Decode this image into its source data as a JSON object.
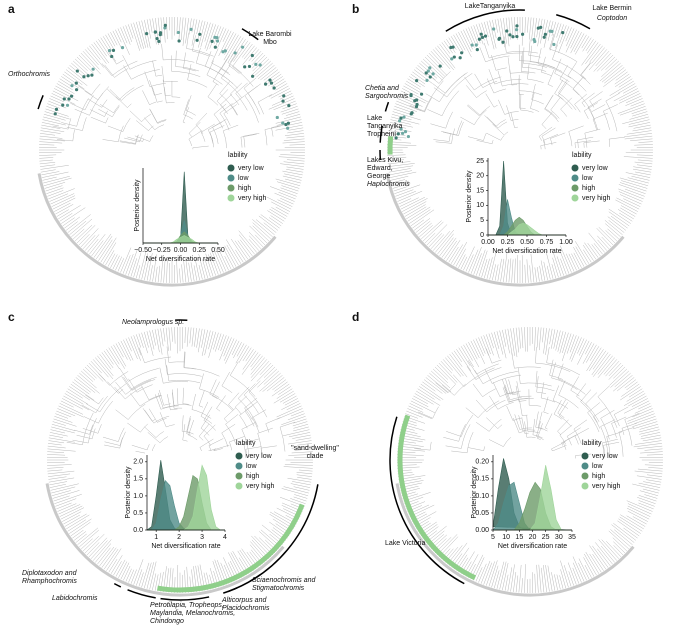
{
  "chart_data": [
    {
      "type": "density",
      "panel_label": "a",
      "xlabel": "Net diversification rate",
      "ylabel": "Posterior density",
      "legend_title": "lability",
      "x": [
        -0.5,
        -0.45,
        -0.4,
        -0.35,
        -0.3,
        -0.25,
        -0.2,
        -0.15,
        -0.1,
        -0.05,
        0,
        0.05,
        0.1,
        0.15,
        0.2,
        0.25,
        0.3,
        0.35,
        0.4,
        0.45,
        0.5
      ],
      "xlim": [
        -0.5,
        0.5
      ],
      "ylim": [
        0,
        40
      ],
      "xticks": [
        {
          "value": -0.5,
          "label": "−0.50"
        },
        {
          "value": -0.25,
          "label": "−0.25"
        },
        {
          "value": 0,
          "label": "0.00"
        },
        {
          "value": 0.25,
          "label": "0.25"
        },
        {
          "value": 0.5,
          "label": "0.50"
        }
      ],
      "yticks": [],
      "series": [
        {
          "name": "very low",
          "color": "#2f5d50",
          "values": [
            0,
            0,
            0,
            0,
            0,
            0,
            0,
            0,
            0,
            0,
            2,
            38,
            3,
            0,
            0,
            0,
            0,
            0,
            0,
            0,
            0
          ]
        },
        {
          "name": "low",
          "color": "#4f8c88",
          "values": [
            0,
            0,
            0,
            0,
            0,
            0,
            0,
            0,
            0,
            0,
            4,
            12,
            4,
            0,
            0,
            0,
            0,
            0,
            0,
            0,
            0
          ]
        },
        {
          "name": "high",
          "color": "#6d9b69",
          "values": [
            0,
            0,
            0,
            0,
            0,
            0,
            0,
            0,
            0,
            1,
            4,
            6,
            4,
            1,
            0,
            0,
            0,
            0,
            0,
            0,
            0
          ]
        },
        {
          "name": "very high",
          "color": "#9fd59a",
          "values": [
            0,
            0,
            0,
            0,
            0,
            0,
            0,
            0,
            0.5,
            2,
            3,
            4,
            3,
            2,
            0.5,
            0,
            0,
            0,
            0,
            0,
            0
          ]
        }
      ],
      "annotations": [
        {
          "lines": [
            "Lake Barombi",
            "Mbo"
          ],
          "italic": false
        },
        {
          "lines": [
            "Orthochromis"
          ],
          "italic": true
        }
      ]
    },
    {
      "type": "density",
      "panel_label": "b",
      "xlabel": "Net diversification rate",
      "ylabel": "Posterior density",
      "legend_title": "lability",
      "x": [
        0,
        0.05,
        0.1,
        0.15,
        0.2,
        0.25,
        0.3,
        0.35,
        0.4,
        0.45,
        0.5,
        0.55,
        0.6,
        0.65,
        0.7,
        0.75,
        0.8,
        0.85,
        0.9,
        0.95,
        1
      ],
      "xlim": [
        0,
        1
      ],
      "ylim": [
        0,
        26
      ],
      "xticks": [
        {
          "value": 0,
          "label": "0.00"
        },
        {
          "value": 0.25,
          "label": "0.25"
        },
        {
          "value": 0.5,
          "label": "0.50"
        },
        {
          "value": 0.75,
          "label": "0.75"
        },
        {
          "value": 1,
          "label": "1.00"
        }
      ],
      "yticks": [
        0,
        5,
        10,
        15,
        20,
        25
      ],
      "series": [
        {
          "name": "very low",
          "color": "#2f5d50",
          "values": [
            0,
            0,
            0,
            3,
            25,
            4,
            0,
            0,
            0,
            0,
            0,
            0,
            0,
            0,
            0,
            0,
            0,
            0,
            0,
            0,
            0
          ]
        },
        {
          "name": "low",
          "color": "#4f8c88",
          "values": [
            0,
            0,
            0,
            0,
            3,
            12,
            6,
            1,
            0,
            0,
            0,
            0,
            0,
            0,
            0,
            0,
            0,
            0,
            0,
            0,
            0
          ]
        },
        {
          "name": "high",
          "color": "#6d9b69",
          "values": [
            0,
            0,
            0,
            0,
            0,
            1,
            3,
            5,
            6,
            5,
            3,
            1,
            0,
            0,
            0,
            0,
            0,
            0,
            0,
            0,
            0
          ]
        },
        {
          "name": "very high",
          "color": "#9fd59a",
          "values": [
            0,
            0,
            0,
            0,
            0,
            0,
            1,
            2,
            3.5,
            4,
            3.5,
            2.5,
            1.5,
            0.5,
            0,
            0,
            0,
            0,
            0,
            0,
            0
          ]
        }
      ],
      "annotations": [
        {
          "lines": [
            "LakeTanganyika"
          ],
          "italic": false
        },
        {
          "lines": [
            "Lake Bermin"
          ],
          "italic": false
        },
        {
          "lines": [
            "Coptodon"
          ],
          "italic": true
        },
        {
          "lines": [
            "Chetia and",
            "Sargochromis"
          ],
          "italic": true
        },
        {
          "lines": [
            "Lake",
            "Tanganyika",
            "Tropheini"
          ],
          "italic": false
        },
        {
          "lines": [
            "Lakes Kivu,",
            "Edward,",
            "George"
          ],
          "italic": false
        },
        {
          "lines": [
            "Haplochromis"
          ],
          "italic": true
        }
      ]
    },
    {
      "type": "density",
      "panel_label": "c",
      "xlabel": "Net diversification rate",
      "ylabel": "Posterior density",
      "legend_title": "lability",
      "x": [
        0.6,
        0.8,
        1.0,
        1.2,
        1.4,
        1.6,
        1.8,
        2.0,
        2.2,
        2.4,
        2.6,
        2.8,
        3.0,
        3.2,
        3.4,
        3.6,
        3.8,
        4.0
      ],
      "xlim": [
        0.6,
        4
      ],
      "ylim": [
        0,
        2.2
      ],
      "xticks": [
        1,
        2,
        3,
        4
      ],
      "yticks": [
        {
          "value": 0,
          "label": "0.0"
        },
        {
          "value": 0.5,
          "label": "0.5"
        },
        {
          "value": 1,
          "label": "1.0"
        },
        {
          "value": 1.5,
          "label": "1.5"
        },
        {
          "value": 2,
          "label": "2.0"
        }
      ],
      "series": [
        {
          "name": "very low",
          "color": "#2f5d50",
          "values": [
            0,
            0.1,
            1.0,
            2.05,
            1.2,
            0.3,
            0.05,
            0,
            0,
            0,
            0,
            0,
            0,
            0,
            0,
            0,
            0,
            0
          ]
        },
        {
          "name": "low",
          "color": "#4f8c88",
          "values": [
            0,
            0,
            0.2,
            0.9,
            1.45,
            1.3,
            0.7,
            0.2,
            0.05,
            0,
            0,
            0,
            0,
            0,
            0,
            0,
            0,
            0
          ]
        },
        {
          "name": "high",
          "color": "#6d9b69",
          "values": [
            0,
            0,
            0,
            0,
            0,
            0,
            0,
            0.1,
            0.4,
            1.0,
            1.6,
            1.5,
            0.8,
            0.2,
            0,
            0,
            0,
            0
          ]
        },
        {
          "name": "very high",
          "color": "#9fd59a",
          "values": [
            0,
            0,
            0,
            0,
            0,
            0,
            0,
            0,
            0,
            0.1,
            0.4,
            1.2,
            1.9,
            1.6,
            0.6,
            0.1,
            0,
            0
          ]
        }
      ],
      "annotations": [
        {
          "lines": [
            "Neolamprologus sp."
          ],
          "italic": true
        },
        {
          "lines": [
            "\"sand-dwelling\"",
            "clade"
          ],
          "italic": false
        },
        {
          "lines": [
            "Diplotaxodon and",
            "Rhamphochromis"
          ],
          "italic": true
        },
        {
          "lines": [
            "Labidochromis"
          ],
          "italic": true
        },
        {
          "lines": [
            "Petrotilapia, Tropheops,",
            "Maylandia, Melanochromis,",
            "Chindongo"
          ],
          "italic": true
        },
        {
          "lines": [
            "Alticorpus and",
            "Placidochromis"
          ],
          "italic": true
        },
        {
          "lines": [
            "Sciaenochromis and",
            "Stigmatochromis"
          ],
          "italic": true
        }
      ]
    },
    {
      "type": "density",
      "panel_label": "d",
      "xlabel": "Net diversification rate",
      "ylabel": "Posterior density",
      "legend_title": "lability",
      "x": [
        5,
        7,
        9,
        11,
        13,
        15,
        17,
        19,
        21,
        23,
        25,
        27,
        29,
        31,
        33,
        35
      ],
      "xlim": [
        5,
        35
      ],
      "ylim": [
        0,
        0.22
      ],
      "xticks": [
        5,
        10,
        15,
        20,
        25,
        30,
        35
      ],
      "yticks": [
        {
          "value": 0,
          "label": "0.00"
        },
        {
          "value": 0.05,
          "label": "0.05"
        },
        {
          "value": 0.1,
          "label": "0.10"
        },
        {
          "value": 0.15,
          "label": "0.15"
        },
        {
          "value": 0.2,
          "label": "0.20"
        }
      ],
      "series": [
        {
          "name": "very low",
          "color": "#2f5d50",
          "values": [
            0.01,
            0.12,
            0.21,
            0.15,
            0.05,
            0.01,
            0,
            0,
            0,
            0,
            0,
            0,
            0,
            0,
            0,
            0
          ]
        },
        {
          "name": "low",
          "color": "#4f8c88",
          "values": [
            0,
            0.02,
            0.08,
            0.13,
            0.14,
            0.08,
            0.02,
            0,
            0,
            0,
            0,
            0,
            0,
            0,
            0,
            0
          ]
        },
        {
          "name": "high",
          "color": "#6d9b69",
          "values": [
            0,
            0,
            0,
            0,
            0,
            0.02,
            0.06,
            0.11,
            0.14,
            0.12,
            0.05,
            0.01,
            0,
            0,
            0,
            0
          ]
        },
        {
          "name": "very high",
          "color": "#9fd59a",
          "values": [
            0,
            0,
            0,
            0,
            0,
            0,
            0,
            0,
            0.02,
            0.1,
            0.19,
            0.12,
            0.03,
            0,
            0,
            0
          ]
        }
      ],
      "annotations": [
        {
          "lines": [
            "Lake Victoria"
          ],
          "italic": false
        }
      ]
    }
  ]
}
